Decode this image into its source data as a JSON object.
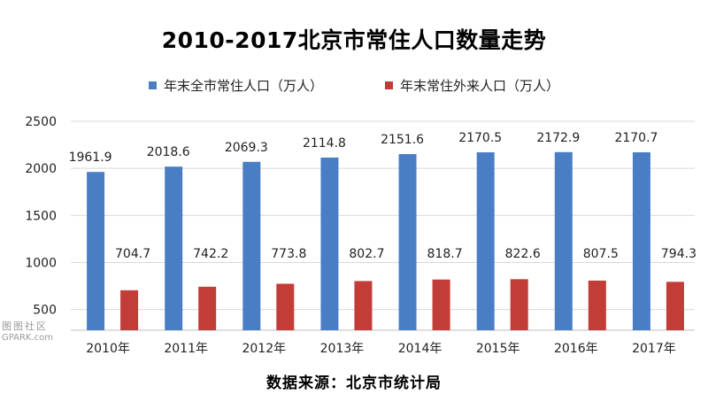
{
  "chart_data": {
    "type": "bar",
    "title": "2010-2017北京市常住人口数量走势",
    "categories": [
      "2010年",
      "2011年",
      "2012年",
      "2013年",
      "2014年",
      "2015年",
      "2016年",
      "2017年"
    ],
    "series": [
      {
        "name": "年末全市常住人口（万人）",
        "color": "#4a7ec4",
        "values": [
          1961.9,
          2018.6,
          2069.3,
          2114.8,
          2151.6,
          2170.5,
          2172.9,
          2170.7
        ]
      },
      {
        "name": "年末常住外来人口（万人）",
        "color": "#c23c38",
        "values": [
          704.7,
          742.2,
          773.8,
          802.7,
          818.7,
          822.6,
          807.5,
          794.3
        ]
      }
    ],
    "data_labels": {
      "series0": [
        "1961.9",
        "2018.6",
        "2069.3",
        "2114.8",
        "2151.6",
        "2170.5",
        "2172.9",
        "2170.7"
      ],
      "series1": [
        "704.7",
        "742.2",
        "773.8",
        "802.7",
        "818.7",
        "822.6",
        "807.5",
        "794.3"
      ]
    },
    "y_ticks": [
      "500",
      "1000",
      "1500",
      "2000",
      "2500"
    ],
    "ylim": [
      280,
      2500
    ],
    "grid": true,
    "legend": "top-center",
    "source": "数据来源：北京市统计局"
  },
  "watermark": {
    "line1": "图图社区",
    "line2": "GPARK.com"
  }
}
